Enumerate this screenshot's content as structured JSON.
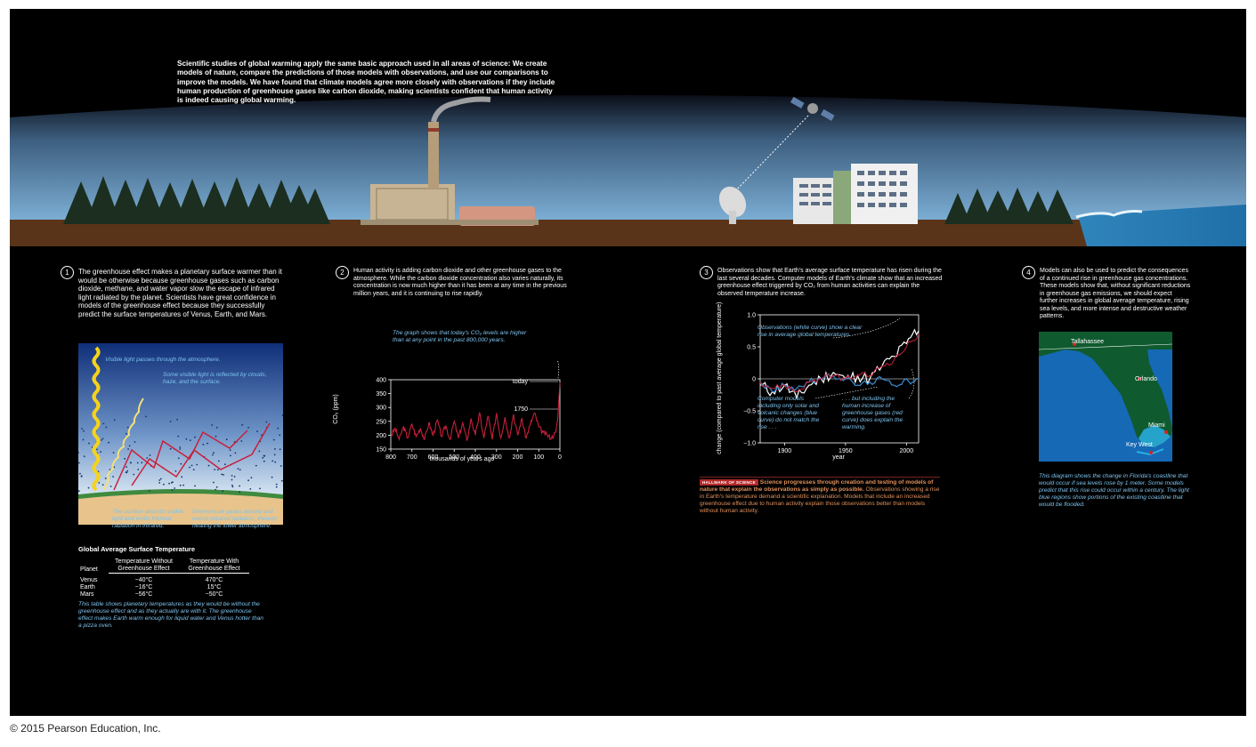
{
  "intro": "Scientific studies of global warming apply the same basic approach used in all areas of science: We create models of nature, compare the predictions of those models with observations, and use our comparisons to improve the models. We have found that climate models agree more closely with observations if they include human production of greenhouse gases like carbon dioxide, making scientists confident that human activity is indeed causing global warming.",
  "copyright": "© 2015 Pearson Education, Inc.",
  "steps": [
    {
      "num": "1",
      "text": "The greenhouse effect makes a planetary surface warmer than it would be otherwise because greenhouse gases such as carbon dioxide, methane, and water vapor slow the escape of infrared light radiated by the planet. Scientists have great confidence in models of the greenhouse effect because they successfully predict the surface temperatures of Venus, Earth, and Mars."
    },
    {
      "num": "2",
      "text": "Human activity is adding carbon dioxide and other greenhouse gases to the atmosphere. While the carbon dioxide concentration also varies naturally, its concentration is now much higher than it has been at any time in the previous million years, and it is continuing to rise rapidly."
    },
    {
      "num": "3",
      "text": "Observations show that Earth's average surface temperature has risen during the last several decades. Computer models of Earth's climate show that an increased greenhouse effect triggered by CO₂ from human activities can explain the observed temperature increase."
    },
    {
      "num": "4",
      "text": "Models can also be used to predict the consequences of a continued rise in greenhouse gas concentrations. These models show that, without significant reductions in greenhouse gas emissions, we should expect further increases in global average temperature, rising sea levels, and more intense and destructive weather patterns."
    }
  ],
  "greenhouse": {
    "visible_passes": "Visible light passes through the atmosphere.",
    "reflected": "Some visible light is reflected by clouds, haze, and the surface.",
    "surface_absorbs": "The surface absorbs visible light and emits thermal radiation in infrared.",
    "gases_absorb": "Greenhouse gases absorb and reemit infrared radiation, thereby heating the lower atmosphere."
  },
  "temp_table": {
    "title": "Global Average Surface Temperature",
    "col_planet": "Planet",
    "col_without": "Temperature Without Greenhouse Effect",
    "col_with": "Temperature With Greenhouse Effect",
    "rows": [
      {
        "planet": "Venus",
        "without": "−40°C",
        "with": "470°C"
      },
      {
        "planet": "Earth",
        "without": "−16°C",
        "with": "15°C"
      },
      {
        "planet": "Mars",
        "without": "−56°C",
        "with": "−50°C"
      }
    ],
    "caption": "This table shows planetary temperatures as they would be without the greenhouse effect and as they actually are with it. The greenhouse effect makes Earth warm enough for liquid water and Venus hotter than a pizza oven."
  },
  "co2_chart": {
    "note": "The graph shows that today's CO₂ levels are higher than at any point in the past 800,000 years.",
    "ylabel": "CO₂ (ppm)",
    "xlabel": "thousands of years ago",
    "label_today": "today",
    "label_1750": "1750",
    "yticks": [
      "400",
      "350",
      "300",
      "250",
      "200",
      "150"
    ],
    "xticks": [
      "800",
      "700",
      "600",
      "500",
      "400",
      "300",
      "200",
      "100",
      "0"
    ]
  },
  "temp_chart": {
    "ylabel": "change (compared to past average global temperature) (°C)",
    "xlabel": "year",
    "yticks": [
      "1.0",
      "0.5",
      "0",
      "−0.5",
      "−1.0"
    ],
    "xticks": [
      "1900",
      "1950",
      "2000"
    ],
    "note_obs": "Observations (white curve) show a clear rise in average global temperatures.",
    "note_solar": "Computer models including only solar and volcanic changes (blue curve) do not match the rise . . .",
    "note_human": ". . . but including the human increase of greenhouse gases (red curve) does explain the warming."
  },
  "hallmark": {
    "tag": "HALLMARK OF SCIENCE",
    "bold": "Science progresses through creation and testing of models of nature that explain the observations as simply as possible.",
    "text": "Observations showing a rise in Earth's temperature demand a scientific explanation. Models that include an increased greenhouse effect due to human activity explain those observations better than models without human activity."
  },
  "florida": {
    "cities": [
      "Tallahassee",
      "Orlando",
      "Miami",
      "Key West"
    ],
    "caption": "This diagram shows the change in Florida's coastline that would occur if sea levels rose by 1 meter. Some models predict that this rise could occur within a century. The light blue regions show portions of the existing coastline that would be flooded."
  },
  "chart_data": [
    {
      "type": "line",
      "ylabel": "CO₂ (ppm)",
      "xlabel": "thousands of years ago",
      "xlim": [
        800,
        0
      ],
      "ylim": [
        150,
        400
      ],
      "x": [
        800,
        780,
        760,
        740,
        720,
        700,
        680,
        660,
        640,
        620,
        600,
        580,
        560,
        540,
        520,
        500,
        480,
        460,
        440,
        420,
        400,
        380,
        360,
        340,
        320,
        300,
        280,
        260,
        240,
        220,
        200,
        180,
        160,
        140,
        120,
        100,
        80,
        60,
        40,
        20,
        10,
        0
      ],
      "values": [
        195,
        225,
        185,
        230,
        190,
        240,
        195,
        225,
        185,
        245,
        200,
        255,
        195,
        235,
        185,
        250,
        190,
        245,
        180,
        260,
        200,
        280,
        190,
        270,
        185,
        280,
        190,
        265,
        190,
        275,
        200,
        260,
        190,
        240,
        280,
        230,
        210,
        200,
        190,
        210,
        260,
        390
      ]
    },
    {
      "type": "line",
      "xlabel": "year",
      "ylabel": "change (compared to past average global temperature) (°C)",
      "xlim": [
        1880,
        2010
      ],
      "ylim": [
        -1.0,
        1.0
      ],
      "x": [
        1880,
        1890,
        1900,
        1910,
        1920,
        1930,
        1940,
        1950,
        1960,
        1970,
        1980,
        1990,
        2000,
        2005,
        2010
      ],
      "series": [
        {
          "name": "white curve",
          "values": [
            -0.1,
            -0.2,
            -0.1,
            -0.3,
            -0.1,
            0.0,
            0.1,
            0.0,
            0.05,
            0.0,
            0.2,
            0.35,
            0.55,
            0.7,
            0.75
          ]
        },
        {
          "name": "blue curve",
          "values": [
            -0.05,
            -0.2,
            -0.1,
            -0.15,
            -0.05,
            0.0,
            0.05,
            0.0,
            -0.1,
            -0.05,
            0.0,
            -0.1,
            0.0,
            -0.05,
            0.0
          ]
        },
        {
          "name": "red curve",
          "values": [
            -0.05,
            -0.15,
            -0.1,
            -0.2,
            -0.05,
            0.0,
            0.05,
            0.0,
            0.05,
            0.05,
            0.2,
            0.3,
            0.5,
            0.6,
            0.7
          ]
        }
      ]
    }
  ],
  "colors": {
    "panel": "#000000",
    "sky_top": "#6f9bc3",
    "ground": "#5a3418",
    "note": "#7ec3ee",
    "orange": "#e0905a",
    "red": "#c8203a",
    "blue": "#3a8fd6"
  }
}
